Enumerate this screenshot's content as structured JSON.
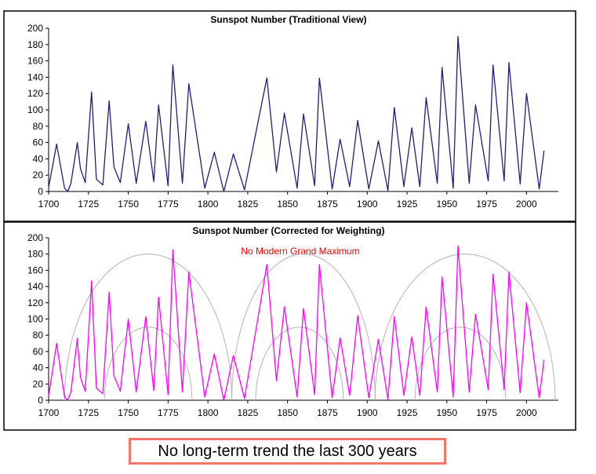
{
  "chart_data": [
    {
      "type": "line",
      "title": "Sunspot Number (Traditional View)",
      "xlabel": "",
      "ylabel": "",
      "xlim": [
        1700,
        2020
      ],
      "ylim": [
        0,
        200
      ],
      "x_ticks": [
        "1700",
        "1725",
        "1750",
        "1775",
        "1800",
        "1825",
        "1850",
        "1875",
        "1900",
        "1925",
        "1950",
        "1975",
        "2000"
      ],
      "y_ticks": [
        "0",
        "20",
        "40",
        "60",
        "80",
        "100",
        "120",
        "140",
        "160",
        "180",
        "200"
      ],
      "grid": false,
      "color": "#1f1f7a",
      "series": [
        {
          "x": [
            1700,
            1705,
            1710,
            1712,
            1714,
            1718,
            1720,
            1723,
            1727,
            1730,
            1734,
            1738,
            1741,
            1745,
            1750,
            1755,
            1761,
            1766,
            1769,
            1775,
            1778,
            1784,
            1788,
            1798,
            1804,
            1810,
            1816,
            1823,
            1830,
            1837,
            1843,
            1848,
            1856,
            1860,
            1867,
            1870,
            1878,
            1883,
            1889,
            1894,
            1901,
            1907,
            1913,
            1917,
            1923,
            1928,
            1933,
            1937,
            1944,
            1947,
            1954,
            1957,
            1964,
            1968,
            1976,
            1979,
            1986,
            1989,
            1996,
            2000,
            2008,
            2011
          ],
          "values": [
            5,
            58,
            4,
            0,
            10,
            60,
            28,
            11,
            122,
            15,
            8,
            111,
            30,
            11,
            83,
            10,
            86,
            12,
            106,
            7,
            155,
            10,
            132,
            4,
            48,
            0,
            46,
            2,
            71,
            139,
            24,
            96,
            4,
            95,
            7,
            139,
            3,
            64,
            6,
            87,
            3,
            62,
            1,
            103,
            6,
            78,
            6,
            115,
            10,
            152,
            4,
            190,
            10,
            106,
            13,
            155,
            13,
            158,
            9,
            120,
            3,
            50
          ]
        }
      ]
    },
    {
      "type": "line",
      "title": "Sunspot Number (Corrected for Weighting)",
      "xlabel": "",
      "ylabel": "",
      "xlim": [
        1700,
        2020
      ],
      "ylim": [
        0,
        200
      ],
      "x_ticks": [
        "1700",
        "1725",
        "1750",
        "1775",
        "1800",
        "1825",
        "1850",
        "1875",
        "1900",
        "1925",
        "1950",
        "1975",
        "2000"
      ],
      "y_ticks": [
        "0",
        "20",
        "40",
        "60",
        "80",
        "100",
        "120",
        "140",
        "160",
        "180",
        "200"
      ],
      "grid": false,
      "color": "#ff00ff",
      "annotation": "No Modern Grand Maximum",
      "series": [
        {
          "x": [
            1700,
            1705,
            1710,
            1712,
            1714,
            1718,
            1720,
            1723,
            1727,
            1730,
            1734,
            1738,
            1741,
            1745,
            1750,
            1755,
            1761,
            1766,
            1769,
            1775,
            1778,
            1784,
            1788,
            1798,
            1804,
            1810,
            1816,
            1823,
            1830,
            1837,
            1843,
            1848,
            1856,
            1860,
            1867,
            1870,
            1878,
            1883,
            1889,
            1894,
            1901,
            1907,
            1913,
            1917,
            1923,
            1928,
            1933,
            1937,
            1944,
            1947,
            1954,
            1957,
            1964,
            1968,
            1976,
            1979,
            1986,
            1989,
            1996,
            2000,
            2008,
            2011
          ],
          "values": [
            5,
            70,
            4,
            0,
            10,
            76,
            28,
            11,
            147,
            15,
            8,
            133,
            30,
            11,
            100,
            10,
            103,
            12,
            127,
            7,
            185,
            10,
            158,
            4,
            57,
            0,
            55,
            2,
            85,
            167,
            24,
            115,
            4,
            113,
            7,
            167,
            3,
            77,
            6,
            104,
            3,
            75,
            1,
            103,
            6,
            78,
            6,
            115,
            10,
            152,
            4,
            190,
            10,
            106,
            13,
            155,
            13,
            158,
            9,
            120,
            3,
            50
          ]
        }
      ],
      "envelopes": [
        {
          "start": 1710,
          "end": 1815,
          "peak": 180
        },
        {
          "start": 1735,
          "end": 1790,
          "peak": 90
        },
        {
          "start": 1815,
          "end": 1905,
          "peak": 180
        },
        {
          "start": 1830,
          "end": 1885,
          "peak": 90
        },
        {
          "start": 1905,
          "end": 2018,
          "peak": 180
        },
        {
          "start": 1930,
          "end": 1987,
          "peak": 90
        }
      ]
    }
  ],
  "caption": "No long-term trend the last 300 years"
}
